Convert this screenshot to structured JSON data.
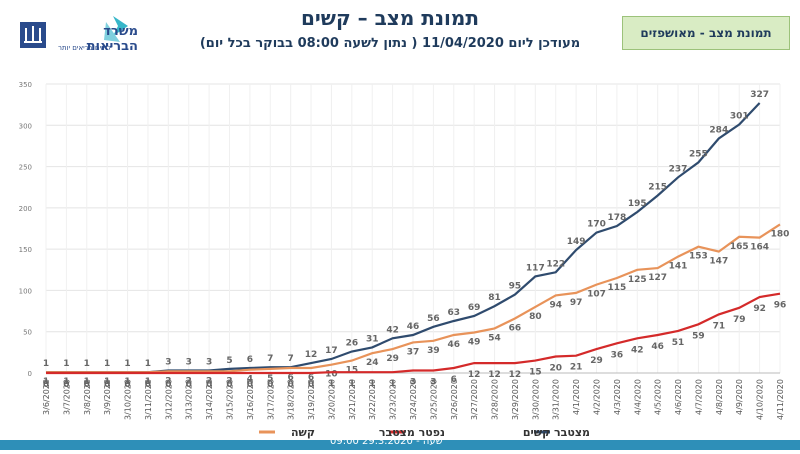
{
  "header": {
    "title": "תמונת מצב – קשים",
    "subtitle": "מעודכן ליום 11/04/2020 ( נתון לשעה 08:00 בבוקר בכל יום)",
    "tag": "תמונת מצב - מאושפזים",
    "logo_text_main": "משרד הבריאות",
    "logo_text_sub": "לחיים בריאים יותר"
  },
  "footer": {
    "text": "09:00 שעה - 29.3.2020"
  },
  "chart_data": {
    "type": "line",
    "title": "",
    "xlabel": "",
    "ylabel": "",
    "ylim": [
      0,
      350
    ],
    "yticks": [
      0,
      50,
      100,
      150,
      200,
      250,
      300,
      350
    ],
    "grid": true,
    "legend_placement": "bottom",
    "categories": [
      "3/6/2020",
      "3/7/2020",
      "3/8/2020",
      "3/9/2020",
      "3/10/2020",
      "3/11/2020",
      "3/12/2020",
      "3/13/2020",
      "3/14/2020",
      "3/15/2020",
      "3/16/2020",
      "3/17/2020",
      "3/18/2020",
      "3/19/2020",
      "3/20/2020",
      "3/21/2020",
      "3/22/2020",
      "3/23/2020",
      "3/24/2020",
      "3/25/2020",
      "3/26/2020",
      "3/27/2020",
      "3/28/2020",
      "3/29/2020",
      "3/30/2020",
      "3/31/2020",
      "4/1/2020",
      "4/2/2020",
      "4/3/2020",
      "4/4/2020",
      "4/5/2020",
      "4/6/2020",
      "4/7/2020",
      "4/8/2020",
      "4/9/2020",
      "4/10/2020",
      "4/11/2020"
    ],
    "series": [
      {
        "name": "מצטבר קשים",
        "color": "#2f4b6e",
        "values": [
          1,
          1,
          1,
          1,
          1,
          1,
          3,
          3,
          3,
          5,
          6,
          7,
          7,
          12,
          17,
          26,
          31,
          42,
          46,
          56,
          63,
          69,
          81,
          95,
          117,
          122,
          149,
          170,
          178,
          195,
          215,
          237,
          255,
          284,
          301,
          327,
          null
        ]
      },
      {
        "name": "קשה",
        "color": "#e8935a",
        "values": [
          1,
          1,
          1,
          1,
          1,
          1,
          2,
          2,
          2,
          2,
          4,
          5,
          6,
          6,
          10,
          15,
          24,
          29,
          37,
          39,
          46,
          49,
          54,
          66,
          80,
          94,
          97,
          107,
          115,
          125,
          127,
          141,
          153,
          147,
          165,
          164,
          180
        ]
      },
      {
        "name": "נפטר מצטבר",
        "color": "#d42a2a",
        "values": [
          0,
          0,
          0,
          0,
          0,
          0,
          0,
          0,
          0,
          0,
          0,
          0,
          0,
          0,
          1,
          1,
          1,
          1,
          3,
          3,
          6,
          12,
          12,
          12,
          15,
          20,
          21,
          29,
          36,
          42,
          46,
          51,
          59,
          71,
          79,
          92,
          96
        ]
      }
    ],
    "label_overrides_note": ""
  }
}
